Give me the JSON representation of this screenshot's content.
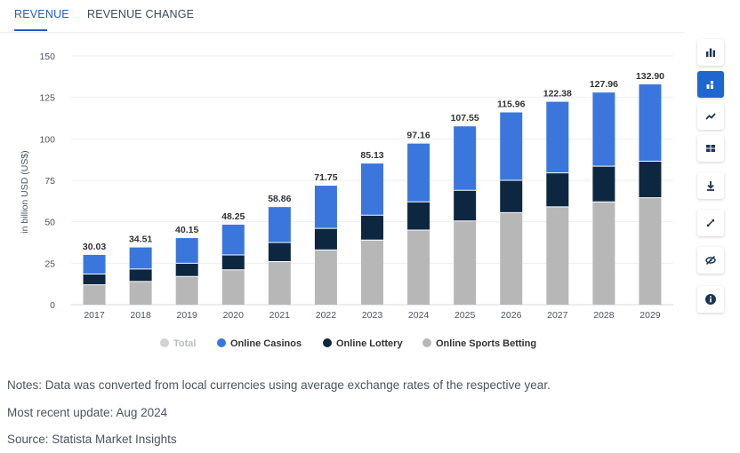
{
  "tabs": [
    {
      "label": "REVENUE",
      "active": true
    },
    {
      "label": "REVENUE CHANGE",
      "active": false
    }
  ],
  "toolbar": {
    "buttons": [
      {
        "icon": "bar-chart-icon",
        "active": false
      },
      {
        "icon": "stacked-bar-icon",
        "active": true
      },
      {
        "icon": "line-chart-icon",
        "active": false
      },
      {
        "icon": "table-icon",
        "active": false
      },
      {
        "icon": "download-icon",
        "active": false
      },
      {
        "icon": "expand-icon",
        "active": false
      },
      {
        "icon": "hide-icon",
        "active": false
      },
      {
        "icon": "info-icon",
        "active": false
      }
    ]
  },
  "notes": {
    "note": "Notes: Data was converted from local currencies using average exchange rates of the respective year.",
    "update": "Most recent update: Aug 2024",
    "source": "Source: Statista Market Insights"
  },
  "chart_data": {
    "type": "bar",
    "stacked": true,
    "categories": [
      "2017",
      "2018",
      "2019",
      "2020",
      "2021",
      "2022",
      "2023",
      "2024",
      "2025",
      "2026",
      "2027",
      "2028",
      "2029"
    ],
    "totals": [
      30.03,
      34.51,
      40.15,
      48.25,
      58.86,
      71.75,
      85.13,
      97.16,
      107.55,
      115.96,
      122.38,
      127.96,
      132.9
    ],
    "total_labels": [
      "30.03",
      "34.51",
      "40.15",
      "48.25",
      "58.86",
      "71.75",
      "85.13",
      "97.16",
      "107.55",
      "115.96",
      "122.38",
      "127.96",
      "132.90"
    ],
    "series": [
      {
        "name": "Online Sports Betting",
        "color": "#b7b7b7",
        "values": [
          12,
          14,
          17,
          21,
          26,
          33,
          39,
          45,
          50.5,
          55.5,
          59,
          62,
          64.5
        ]
      },
      {
        "name": "Online Lottery",
        "color": "#0e2740",
        "values": [
          6.5,
          7.5,
          8,
          9,
          11.5,
          13,
          15,
          17,
          18.5,
          19.5,
          20.5,
          21.5,
          22
        ]
      },
      {
        "name": "Online Casinos",
        "color": "#3b76dc",
        "values": [
          11.53,
          13.01,
          15.15,
          18.25,
          21.36,
          25.75,
          31.13,
          35.16,
          38.55,
          40.96,
          42.88,
          44.46,
          46.4
        ]
      }
    ],
    "legend": [
      {
        "name": "Total",
        "color": "#d2d2d2",
        "muted": true
      },
      {
        "name": "Online Casinos",
        "color": "#3b76dc",
        "muted": false
      },
      {
        "name": "Online Lottery",
        "color": "#0e2740",
        "muted": false
      },
      {
        "name": "Online Sports Betting",
        "color": "#b7b7b7",
        "muted": false
      }
    ],
    "legend_position": "bottom",
    "ylabel": "in billion USD (US$)",
    "yticks": [
      0,
      25,
      50,
      75,
      100,
      125,
      150
    ],
    "ylim": [
      0,
      150
    ],
    "grid": true
  }
}
